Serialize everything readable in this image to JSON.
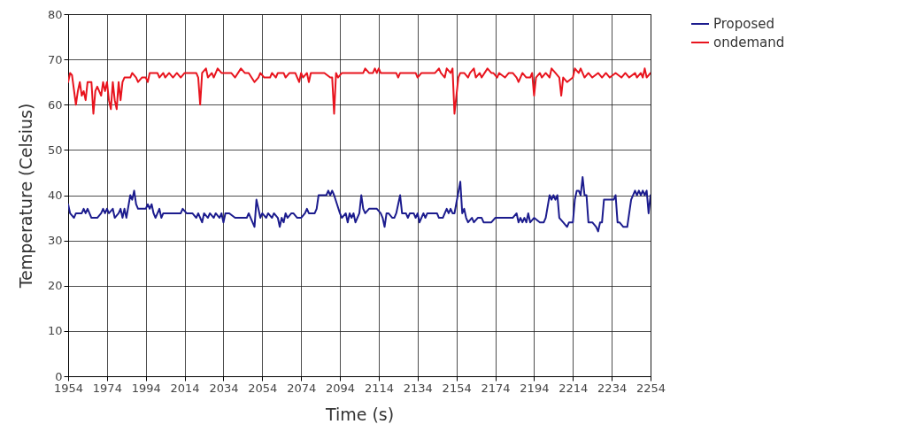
{
  "chart_data": {
    "type": "line",
    "xlabel": "Time (s)",
    "ylabel": "Temperature (Celsius)",
    "xlim": [
      1954,
      2254
    ],
    "ylim": [
      0,
      80
    ],
    "xticks": [
      1954,
      1974,
      1994,
      2014,
      2034,
      2054,
      2074,
      2094,
      2114,
      2134,
      2154,
      2174,
      2194,
      2214,
      2234,
      2254
    ],
    "yticks": [
      0,
      10,
      20,
      30,
      40,
      50,
      60,
      70,
      80
    ],
    "grid": true,
    "legend": "top right",
    "marker": "none",
    "line_style": "solid",
    "series": [
      {
        "name": "Proposed",
        "color": "#1c1c8e",
        "x": [
          1954,
          1955,
          1957,
          1958,
          1961,
          1962,
          1963,
          1964,
          1966,
          1969,
          1971,
          1972,
          1973,
          1974,
          1975,
          1977,
          1978,
          1980,
          1981,
          1982,
          1983,
          1984,
          1986,
          1987,
          1988,
          1989,
          1990,
          1994,
          1995,
          1996,
          1997,
          1998,
          1999,
          2001,
          2002,
          2003,
          2012,
          2013,
          2015,
          2018,
          2020,
          2021,
          2023,
          2024,
          2026,
          2027,
          2029,
          2030,
          2032,
          2033,
          2034,
          2035,
          2037,
          2040,
          2046,
          2047,
          2048,
          2050,
          2051,
          2053,
          2054,
          2056,
          2057,
          2059,
          2060,
          2062,
          2063,
          2064,
          2065,
          2066,
          2067,
          2069,
          2070,
          2072,
          2074,
          2076,
          2077,
          2078,
          2081,
          2082,
          2083,
          2084,
          2085,
          2087,
          2088,
          2089,
          2090,
          2091,
          2094,
          2095,
          2097,
          2098,
          2099,
          2100,
          2101,
          2102,
          2104,
          2105,
          2106,
          2107,
          2109,
          2111,
          2113,
          2115,
          2116,
          2117,
          2118,
          2119,
          2121,
          2122,
          2123,
          2125,
          2126,
          2128,
          2129,
          2130,
          2132,
          2133,
          2134,
          2135,
          2137,
          2138,
          2139,
          2141,
          2142,
          2144,
          2145,
          2147,
          2148,
          2149,
          2150,
          2151,
          2152,
          2153,
          2156,
          2157,
          2158,
          2159,
          2160,
          2162,
          2163,
          2165,
          2167,
          2168,
          2172,
          2174,
          2183,
          2185,
          2186,
          2187,
          2188,
          2189,
          2190,
          2191,
          2192,
          2194,
          2197,
          2199,
          2200,
          2202,
          2203,
          2204,
          2205,
          2206,
          2207,
          2209,
          2211,
          2212,
          2214,
          2215,
          2216,
          2217,
          2218,
          2219,
          2220,
          2221,
          2222,
          2224,
          2226,
          2227,
          2228,
          2229,
          2230,
          2235,
          2236,
          2237,
          2238,
          2240,
          2242,
          2244,
          2246,
          2247,
          2248,
          2249,
          2250,
          2251,
          2252,
          2253,
          2254
        ],
        "values": [
          38,
          36,
          35,
          36,
          36,
          37,
          36,
          37,
          35,
          35,
          36,
          37,
          36,
          37,
          36,
          37,
          35,
          36,
          37,
          35,
          37,
          35,
          40,
          39,
          41,
          38,
          37,
          37,
          38,
          37,
          38,
          36,
          35,
          37,
          35,
          36,
          36,
          37,
          36,
          36,
          35,
          36,
          34,
          36,
          35,
          36,
          35,
          36,
          35,
          36,
          34,
          36,
          36,
          35,
          35,
          36,
          35,
          33,
          39,
          35,
          36,
          35,
          36,
          35,
          36,
          35,
          33,
          35,
          34,
          36,
          35,
          36,
          36,
          35,
          35,
          36,
          37,
          36,
          36,
          37,
          40,
          40,
          40,
          40,
          41,
          40,
          41,
          40,
          36,
          35,
          36,
          34,
          36,
          35,
          36,
          34,
          36,
          40,
          37,
          36,
          37,
          37,
          37,
          36,
          35,
          33,
          36,
          36,
          35,
          35,
          36,
          40,
          36,
          36,
          35,
          36,
          36,
          35,
          36,
          34,
          36,
          35,
          36,
          36,
          36,
          36,
          35,
          35,
          36,
          37,
          36,
          37,
          36,
          36,
          43,
          36,
          37,
          35,
          34,
          35,
          34,
          35,
          35,
          34,
          34,
          35,
          35,
          36,
          34,
          35,
          34,
          35,
          34,
          36,
          34,
          35,
          34,
          34,
          35,
          40,
          39,
          40,
          39,
          40,
          35,
          34,
          33,
          34,
          34,
          39,
          41,
          41,
          40,
          44,
          40,
          40,
          34,
          34,
          33,
          32,
          34,
          34,
          39,
          39,
          40,
          34,
          34,
          33,
          33,
          39,
          41,
          40,
          41,
          40,
          41,
          40,
          41,
          36,
          40
        ]
      },
      {
        "name": "ondemand",
        "color": "#e8141e",
        "x": [
          1954,
          1955,
          1956,
          1958,
          1959,
          1960,
          1961,
          1962,
          1963,
          1964,
          1966,
          1967,
          1968,
          1969,
          1971,
          1972,
          1973,
          1974,
          1975,
          1976,
          1977,
          1978,
          1979,
          1980,
          1981,
          1982,
          1983,
          1986,
          1987,
          1989,
          1990,
          1992,
          1994,
          1995,
          1996,
          2000,
          2001,
          2003,
          2004,
          2006,
          2008,
          2010,
          2012,
          2014,
          2020,
          2021,
          2022,
          2023,
          2025,
          2026,
          2028,
          2029,
          2031,
          2033,
          2038,
          2040,
          2043,
          2045,
          2047,
          2050,
          2052,
          2053,
          2055,
          2058,
          2059,
          2061,
          2062,
          2065,
          2066,
          2068,
          2071,
          2072,
          2073,
          2074,
          2075,
          2077,
          2078,
          2079,
          2083,
          2086,
          2089,
          2090,
          2091,
          2092,
          2093,
          2095,
          2106,
          2107,
          2109,
          2111,
          2112,
          2113,
          2114,
          2115,
          2123,
          2124,
          2125,
          2133,
          2134,
          2136,
          2143,
          2145,
          2146,
          2148,
          2149,
          2151,
          2152,
          2153,
          2155,
          2156,
          2158,
          2160,
          2161,
          2163,
          2164,
          2166,
          2167,
          2170,
          2172,
          2173,
          2175,
          2176,
          2179,
          2181,
          2183,
          2185,
          2186,
          2188,
          2190,
          2192,
          2193,
          2194,
          2195,
          2197,
          2198,
          2200,
          2202,
          2203,
          2205,
          2207,
          2208,
          2209,
          2211,
          2214,
          2215,
          2217,
          2218,
          2220,
          2222,
          2224,
          2227,
          2229,
          2231,
          2233,
          2236,
          2239,
          2241,
          2243,
          2246,
          2247,
          2249,
          2250,
          2251,
          2252,
          2254
        ],
        "values": [
          65,
          67,
          66.5,
          60,
          63,
          65,
          62,
          63,
          61,
          65,
          65,
          58,
          63,
          64,
          62,
          65,
          63,
          65,
          61,
          59,
          65,
          61,
          59,
          65,
          61,
          65,
          66,
          66,
          67,
          66,
          65,
          66,
          66,
          65,
          67,
          67,
          66,
          67,
          66,
          67,
          66,
          67,
          66,
          67,
          67,
          66,
          60,
          67,
          68,
          66,
          67,
          66,
          68,
          67,
          67,
          66,
          68,
          67,
          67,
          65,
          66,
          67,
          66,
          66,
          67,
          66,
          67,
          67,
          66,
          67,
          67,
          66,
          65,
          67,
          66,
          67,
          65,
          67,
          67,
          67,
          66,
          66,
          58,
          67,
          66,
          67,
          67,
          68,
          67,
          67,
          68,
          67,
          68,
          67,
          67,
          66,
          67,
          67,
          66,
          67,
          67,
          68,
          67,
          66,
          68,
          67,
          68,
          58,
          66,
          67,
          67,
          66,
          67,
          68,
          66,
          67,
          66,
          68,
          67,
          67,
          66,
          67,
          66,
          67,
          67,
          66,
          65,
          67,
          66,
          66,
          67,
          62,
          66,
          67,
          66,
          67,
          66,
          68,
          67,
          66,
          62,
          66,
          65,
          66,
          68,
          67,
          68,
          66,
          67,
          66,
          67,
          66,
          67,
          66,
          67,
          66,
          67,
          66,
          67,
          66,
          67,
          66,
          68,
          66,
          67
        ]
      }
    ]
  }
}
